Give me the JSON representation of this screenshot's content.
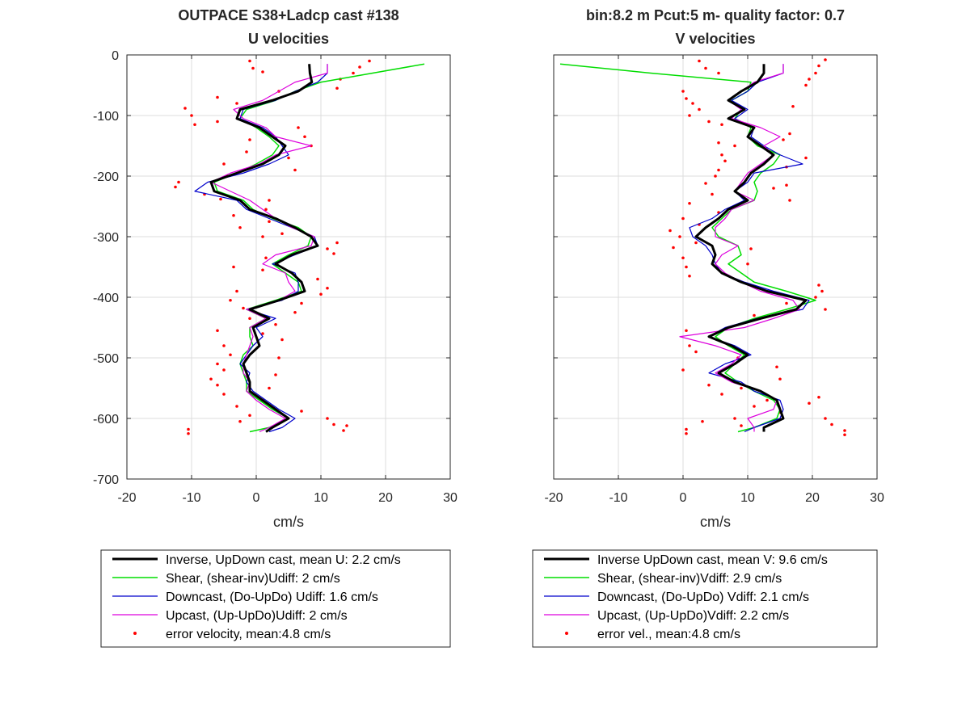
{
  "chart_data": [
    {
      "type": "line",
      "title": "OUTPACE S38+Ladcp cast #138",
      "subtitle": "U velocities",
      "xlabel": "cm/s",
      "ylabel": "",
      "xlim": [
        -20,
        30
      ],
      "ylim": [
        -700,
        0
      ],
      "xticks": [
        "-20",
        "-10",
        "0",
        "10",
        "20",
        "30"
      ],
      "yticks": [
        "0",
        "-100",
        "-200",
        "-300",
        "-400",
        "-500",
        "-600",
        "-700"
      ],
      "grid": true,
      "legend_position": "below",
      "depth": [
        -15,
        -30,
        -45,
        -60,
        -75,
        -90,
        -105,
        -120,
        -135,
        -150,
        -165,
        -180,
        -195,
        -210,
        -225,
        -240,
        -255,
        -270,
        -285,
        -300,
        -315,
        -330,
        -345,
        -360,
        -375,
        -390,
        -405,
        -420,
        -435,
        -450,
        -465,
        -480,
        -495,
        -510,
        -525,
        -540,
        -555,
        -570,
        -585,
        -600,
        -615,
        -622
      ],
      "series": [
        {
          "name": "Inverse, UpDown cast, mean U:  2.2 cm/s",
          "color": "#000000",
          "width": 3,
          "values": [
            8.2,
            8.3,
            8.6,
            6.5,
            2.5,
            -2.5,
            -3.0,
            0.5,
            2.5,
            4.5,
            3.5,
            1.0,
            -3.0,
            -7.0,
            -6.5,
            -2.5,
            -1.0,
            3.0,
            6.0,
            8.5,
            9.5,
            5.5,
            3.0,
            5.5,
            7.0,
            7.5,
            3.5,
            -1.0,
            2.0,
            -0.5,
            0.0,
            0.5,
            -1.0,
            -2.0,
            -1.5,
            -1.0,
            -1.0,
            1.0,
            3.0,
            5.0,
            2.5,
            1.5
          ]
        },
        {
          "name": "Shear, (shear-inv)Udiff:  2 cm/s",
          "color": "#00dd00",
          "width": 1.5,
          "values": [
            26.0,
            18.0,
            10.0,
            6.0,
            3.0,
            -1.5,
            -2.5,
            0.0,
            2.0,
            3.5,
            2.5,
            0.0,
            -3.0,
            -6.5,
            -6.0,
            -2.0,
            -0.5,
            2.5,
            6.5,
            8.5,
            8.0,
            5.0,
            2.5,
            4.5,
            6.5,
            7.0,
            3.0,
            -1.5,
            1.5,
            -1.0,
            -1.0,
            -0.5,
            -2.0,
            -2.5,
            -2.0,
            -1.5,
            -1.5,
            0.5,
            2.5,
            5.0,
            2.0,
            -1.0
          ]
        },
        {
          "name": "Downcast, (Do-UpDo) Udiff:  1.6 cm/s",
          "color": "#0000cc",
          "width": 1.2,
          "values": [
            11.0,
            11.0,
            9.5,
            6.0,
            3.0,
            -2.0,
            -2.5,
            1.0,
            3.0,
            4.0,
            5.0,
            2.0,
            -2.0,
            -7.5,
            -9.5,
            -3.0,
            -1.5,
            2.0,
            5.5,
            9.0,
            9.5,
            6.0,
            2.5,
            6.0,
            6.5,
            6.5,
            4.0,
            -1.5,
            3.0,
            0.0,
            1.0,
            -0.5,
            -1.5,
            -2.5,
            -1.0,
            -1.5,
            -0.5,
            1.5,
            3.5,
            6.0,
            4.0,
            2.0
          ]
        },
        {
          "name": "Upcast, (Up-UpDo)Udiff:  2 cm/s",
          "color": "#dd00dd",
          "width": 1.2,
          "values": [
            11.0,
            11.0,
            6.0,
            3.5,
            1.0,
            -3.5,
            -2.0,
            1.5,
            3.0,
            8.5,
            3.0,
            0.5,
            -4.0,
            -7.0,
            -4.0,
            -1.0,
            1.0,
            3.0,
            5.5,
            9.0,
            8.5,
            3.0,
            1.0,
            4.5,
            5.0,
            6.0,
            3.5,
            -1.5,
            1.5,
            -1.0,
            -0.5,
            -1.0,
            -1.5,
            -2.0,
            -2.0,
            -1.0,
            -1.5,
            0.0,
            2.0,
            4.5,
            2.0,
            0.5
          ]
        }
      ],
      "error_velocity": {
        "name": "error velocity, mean:4.8 cm/s",
        "color": "#ff0000",
        "points": [
          [
            17.5,
            -10
          ],
          [
            16.0,
            -20
          ],
          [
            -1.0,
            -10
          ],
          [
            -0.5,
            -22
          ],
          [
            1.0,
            -28
          ],
          [
            15.0,
            -30
          ],
          [
            13.0,
            -40
          ],
          [
            12.5,
            -55
          ],
          [
            3.5,
            -60
          ],
          [
            -6.0,
            -70
          ],
          [
            -3.0,
            -80
          ],
          [
            -11.0,
            -88
          ],
          [
            -10.0,
            -100
          ],
          [
            -6.0,
            -110
          ],
          [
            -9.5,
            -115
          ],
          [
            6.5,
            -120
          ],
          [
            7.5,
            -135
          ],
          [
            -1.0,
            -140
          ],
          [
            8.5,
            -150
          ],
          [
            -1.5,
            -160
          ],
          [
            5.0,
            -170
          ],
          [
            -5.0,
            -180
          ],
          [
            6.0,
            -190
          ],
          [
            -4.5,
            -200
          ],
          [
            -12.0,
            -210
          ],
          [
            -12.5,
            -218
          ],
          [
            -8.0,
            -230
          ],
          [
            -5.5,
            -238
          ],
          [
            2.0,
            -240
          ],
          [
            1.5,
            -255
          ],
          [
            -3.5,
            -265
          ],
          [
            2.0,
            -275
          ],
          [
            -2.5,
            -285
          ],
          [
            4.0,
            -295
          ],
          [
            1.0,
            -300
          ],
          [
            12.5,
            -310
          ],
          [
            11.0,
            -320
          ],
          [
            12.0,
            -328
          ],
          [
            1.5,
            -335
          ],
          [
            -3.5,
            -350
          ],
          [
            1.0,
            -355
          ],
          [
            9.5,
            -370
          ],
          [
            11.0,
            -385
          ],
          [
            -3.0,
            -390
          ],
          [
            10.0,
            -395
          ],
          [
            -4.0,
            -405
          ],
          [
            7.0,
            -410
          ],
          [
            -2.0,
            -418
          ],
          [
            6.0,
            -425
          ],
          [
            -1.0,
            -435
          ],
          [
            3.0,
            -445
          ],
          [
            -6.0,
            -455
          ],
          [
            1.0,
            -460
          ],
          [
            4.0,
            -470
          ],
          [
            -5.0,
            -480
          ],
          [
            -4.0,
            -495
          ],
          [
            3.5,
            -500
          ],
          [
            -6.0,
            -510
          ],
          [
            -5.0,
            -520
          ],
          [
            3.0,
            -528
          ],
          [
            -7.0,
            -535
          ],
          [
            -6.0,
            -545
          ],
          [
            2.0,
            -550
          ],
          [
            -5.0,
            -560
          ],
          [
            1.0,
            -570
          ],
          [
            -3.0,
            -580
          ],
          [
            7.0,
            -588
          ],
          [
            -1.0,
            -595
          ],
          [
            11.0,
            -600
          ],
          [
            -2.5,
            -605
          ],
          [
            12.0,
            -610
          ],
          [
            14.0,
            -612
          ],
          [
            -10.5,
            -618
          ],
          [
            13.5,
            -620
          ],
          [
            -10.5,
            -625
          ]
        ]
      }
    },
    {
      "type": "line",
      "title": "bin:8.2 m  Pcut:5 m- quality factor:  0.7",
      "subtitle": "V velocities",
      "xlabel": "cm/s",
      "ylabel": "",
      "xlim": [
        -20,
        30
      ],
      "ylim": [
        -700,
        0
      ],
      "xticks": [
        "-20",
        "-10",
        "0",
        "10",
        "20",
        "30"
      ],
      "grid": true,
      "legend_position": "below",
      "depth": [
        -15,
        -30,
        -45,
        -60,
        -75,
        -90,
        -105,
        -120,
        -135,
        -150,
        -165,
        -180,
        -195,
        -210,
        -225,
        -240,
        -255,
        -270,
        -285,
        -300,
        -315,
        -330,
        -345,
        -360,
        -375,
        -390,
        -405,
        -420,
        -435,
        -450,
        -465,
        -480,
        -495,
        -510,
        -525,
        -540,
        -555,
        -570,
        -585,
        -600,
        -615,
        -622
      ],
      "series": [
        {
          "name": "Inverse UpDown cast, mean V:  9.6 cm/s",
          "color": "#000000",
          "width": 3,
          "values": [
            12.5,
            12.5,
            11.5,
            9.0,
            7.0,
            9.5,
            7.0,
            11.0,
            10.0,
            12.0,
            14.0,
            12.5,
            10.5,
            9.5,
            8.0,
            10.0,
            7.0,
            5.5,
            3.5,
            2.0,
            4.5,
            5.0,
            4.5,
            6.0,
            9.0,
            13.0,
            19.0,
            17.5,
            12.0,
            7.0,
            4.0,
            7.5,
            10.0,
            8.0,
            5.5,
            8.0,
            12.0,
            14.5,
            15.0,
            15.5,
            12.5,
            12.5
          ]
        },
        {
          "name": "Shear, (shear-inv)Vdiff:  2.9 cm/s",
          "color": "#00dd00",
          "width": 1.5,
          "values": [
            -19.0,
            -5.0,
            10.5,
            10.0,
            7.5,
            9.0,
            8.0,
            10.5,
            10.0,
            11.5,
            15.0,
            14.0,
            12.0,
            11.0,
            11.5,
            11.0,
            7.5,
            6.0,
            4.5,
            5.5,
            8.5,
            9.0,
            7.0,
            9.0,
            11.0,
            16.0,
            20.5,
            16.0,
            11.0,
            7.0,
            5.0,
            7.0,
            9.5,
            8.0,
            6.5,
            8.5,
            11.0,
            14.0,
            15.0,
            14.5,
            11.0,
            8.5
          ]
        },
        {
          "name": "Downcast, (Do-UpDo) Vdiff:  2.1 cm/s",
          "color": "#0000cc",
          "width": 1.2,
          "values": [
            15.5,
            15.5,
            11.5,
            10.0,
            7.5,
            10.0,
            8.0,
            11.0,
            10.5,
            12.5,
            15.0,
            18.5,
            11.0,
            10.0,
            8.0,
            9.5,
            6.5,
            4.5,
            1.0,
            1.5,
            3.5,
            4.5,
            5.0,
            6.0,
            9.5,
            14.0,
            19.5,
            18.5,
            11.5,
            6.5,
            4.0,
            8.0,
            10.5,
            6.5,
            4.0,
            9.0,
            11.0,
            15.0,
            15.5,
            15.0,
            11.0,
            9.5
          ]
        },
        {
          "name": "Upcast, (Up-UpDo)Vdiff:  2.2 cm/s",
          "color": "#dd00dd",
          "width": 1.2,
          "values": [
            15.5,
            15.5,
            11.0,
            9.0,
            7.0,
            9.0,
            7.5,
            12.0,
            15.0,
            12.5,
            14.0,
            12.0,
            10.0,
            9.0,
            8.0,
            11.0,
            7.5,
            6.5,
            5.0,
            5.0,
            8.5,
            6.0,
            5.0,
            6.5,
            9.0,
            12.0,
            17.0,
            18.0,
            14.0,
            9.5,
            -0.5,
            5.0,
            9.0,
            7.5,
            5.0,
            7.5,
            12.0,
            14.5,
            14.0,
            10.0,
            11.0,
            11.0
          ]
        }
      ],
      "error_velocity": {
        "name": "error vel., mean:4.8 cm/s",
        "color": "#ff0000",
        "points": [
          [
            22.0,
            -8
          ],
          [
            21.0,
            -18
          ],
          [
            2.5,
            -10
          ],
          [
            3.5,
            -22
          ],
          [
            5.5,
            -30
          ],
          [
            20.5,
            -30
          ],
          [
            19.5,
            -40
          ],
          [
            19.0,
            -50
          ],
          [
            0.0,
            -60
          ],
          [
            0.5,
            -72
          ],
          [
            1.5,
            -80
          ],
          [
            17.0,
            -85
          ],
          [
            2.5,
            -90
          ],
          [
            1.0,
            -100
          ],
          [
            4.0,
            -110
          ],
          [
            6.0,
            -115
          ],
          [
            16.5,
            -130
          ],
          [
            15.5,
            -140
          ],
          [
            5.5,
            -145
          ],
          [
            8.0,
            -150
          ],
          [
            6.0,
            -165
          ],
          [
            6.5,
            -175
          ],
          [
            19.0,
            -170
          ],
          [
            16.0,
            -185
          ],
          [
            5.5,
            -190
          ],
          [
            5.0,
            -200
          ],
          [
            3.5,
            -212
          ],
          [
            16.0,
            -215
          ],
          [
            14.0,
            -220
          ],
          [
            4.5,
            -230
          ],
          [
            16.5,
            -240
          ],
          [
            1.0,
            -245
          ],
          [
            5.5,
            -260
          ],
          [
            0.0,
            -270
          ],
          [
            2.5,
            -280
          ],
          [
            -2.0,
            -290
          ],
          [
            -0.5,
            -300
          ],
          [
            2.0,
            -310
          ],
          [
            -1.5,
            -318
          ],
          [
            10.5,
            -320
          ],
          [
            0.0,
            -335
          ],
          [
            10.0,
            -345
          ],
          [
            0.5,
            -350
          ],
          [
            1.0,
            -365
          ],
          [
            21.0,
            -380
          ],
          [
            21.5,
            -390
          ],
          [
            20.5,
            -400
          ],
          [
            16.0,
            -410
          ],
          [
            22.0,
            -420
          ],
          [
            11.0,
            -430
          ],
          [
            0.5,
            -455
          ],
          [
            1.0,
            -480
          ],
          [
            2.0,
            -490
          ],
          [
            8.5,
            -500
          ],
          [
            14.5,
            -515
          ],
          [
            0.0,
            -520
          ],
          [
            15.0,
            -535
          ],
          [
            4.0,
            -545
          ],
          [
            9.0,
            -550
          ],
          [
            6.0,
            -560
          ],
          [
            13.0,
            -570
          ],
          [
            11.0,
            -580
          ],
          [
            21.0,
            -565
          ],
          [
            19.5,
            -575
          ],
          [
            15.0,
            -590
          ],
          [
            8.0,
            -600
          ],
          [
            22.0,
            -600
          ],
          [
            23.0,
            -610
          ],
          [
            3.0,
            -605
          ],
          [
            9.0,
            -612
          ],
          [
            0.5,
            -618
          ],
          [
            25.0,
            -620
          ],
          [
            0.5,
            -625
          ],
          [
            25.0,
            -627
          ]
        ]
      }
    }
  ]
}
